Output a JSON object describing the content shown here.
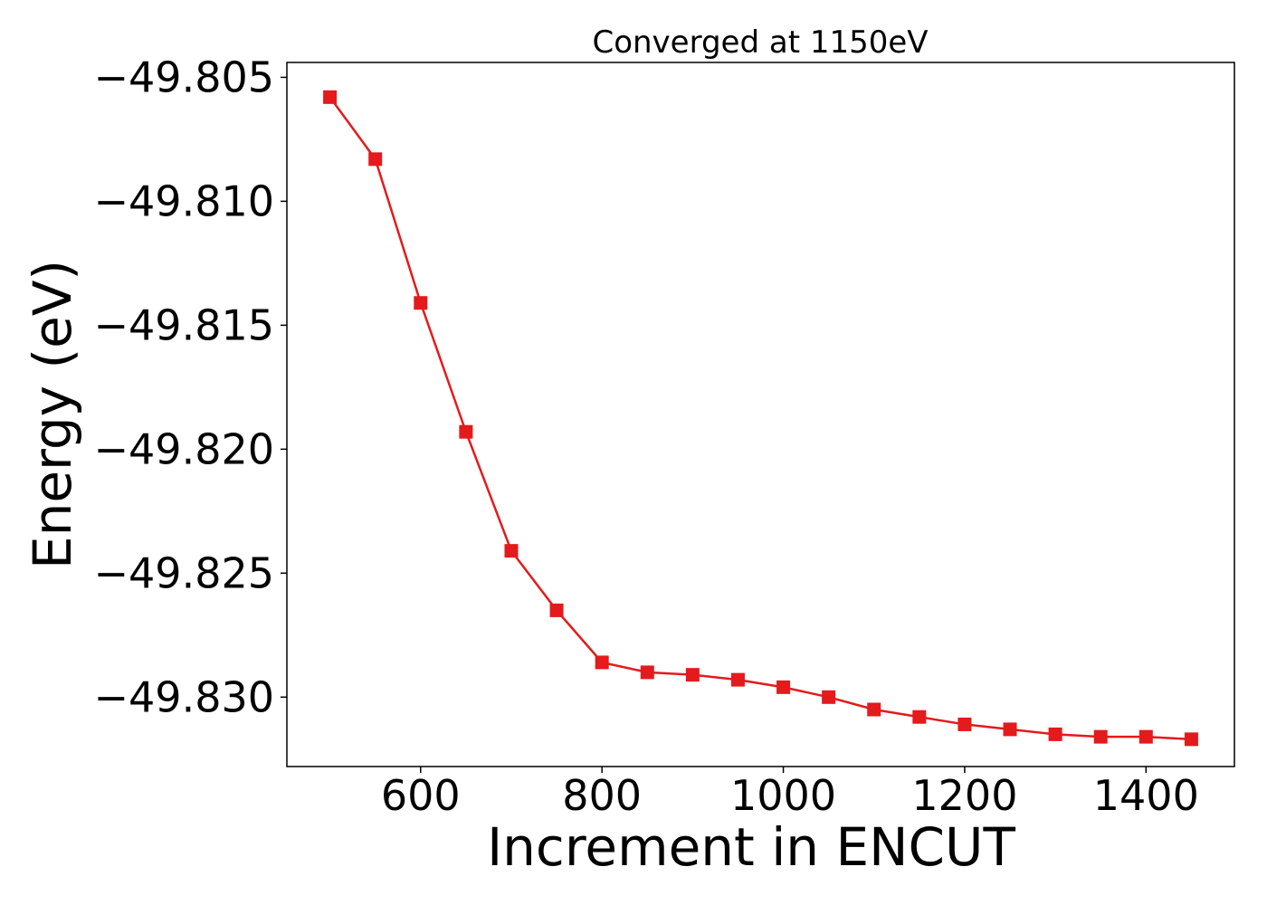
{
  "chart_data": {
    "type": "line",
    "title": "Converged at 1150eV",
    "xlabel": "Increment in ENCUT",
    "ylabel": "Energy (eV)",
    "xlim": [
      452.5,
      1497.5
    ],
    "ylim": [
      -49.8328,
      -49.8044
    ],
    "x_ticks": [
      600,
      800,
      1000,
      1200,
      1400
    ],
    "x_tick_labels": [
      "600",
      "800",
      "1000",
      "1200",
      "1400"
    ],
    "y_ticks": [
      -49.805,
      -49.81,
      -49.815,
      -49.82,
      -49.825,
      -49.83
    ],
    "y_tick_labels": [
      "−49.805",
      "−49.810",
      "−49.815",
      "−49.820",
      "−49.825",
      "−49.830"
    ],
    "grid": false,
    "series": [
      {
        "color": "#e41a1c",
        "marker": "square",
        "x": [
          500,
          550,
          600,
          650,
          700,
          750,
          800,
          850,
          900,
          950,
          1000,
          1050,
          1100,
          1150,
          1200,
          1250,
          1300,
          1350,
          1400,
          1450
        ],
        "y": [
          -49.8058,
          -49.8083,
          -49.8141,
          -49.8193,
          -49.8241,
          -49.8265,
          -49.8286,
          -49.829,
          -49.8291,
          -49.8293,
          -49.8296,
          -49.83,
          -49.8305,
          -49.8308,
          -49.8311,
          -49.8313,
          -49.8315,
          -49.8316,
          -49.8316,
          -49.8317
        ]
      }
    ]
  }
}
